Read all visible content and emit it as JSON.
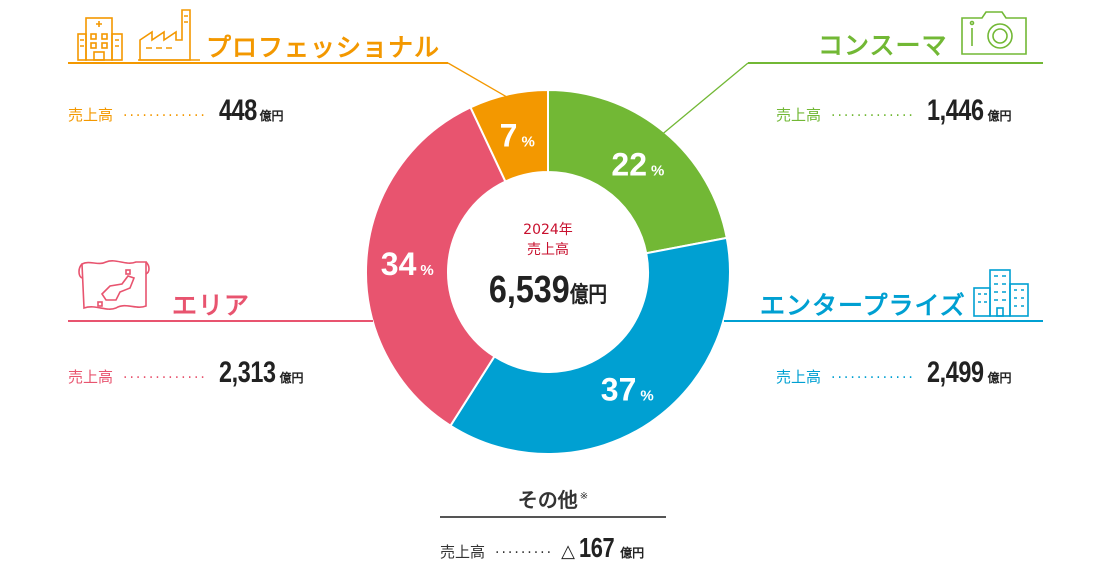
{
  "chart_data": {
    "type": "pie",
    "variant": "donut",
    "center": {
      "year_label": "2024年",
      "sales_label": "売上高",
      "total": "6,539",
      "unit": "億円"
    },
    "slices": [
      {
        "name": "コンスーマ",
        "percent": 22,
        "sales": "1,446",
        "color": "#72b835"
      },
      {
        "name": "エンタープライズ",
        "percent": 37,
        "sales": "2,499",
        "color": "#00a0d2"
      },
      {
        "name": "エリア",
        "percent": 34,
        "sales": "2,313",
        "color": "#e8546f"
      },
      {
        "name": "プロフェッショナル",
        "percent": 7,
        "sales": "448",
        "color": "#f39800"
      }
    ],
    "percent_sign": "%"
  },
  "segments": {
    "professional": {
      "title": "プロフェッショナル",
      "sales_label": "売上高",
      "dots": "·············",
      "amount": "448",
      "unit": "億円",
      "color": "#f39800"
    },
    "consumer": {
      "title": "コンスーマ",
      "sales_label": "売上高",
      "dots": "·············",
      "amount": "1,446",
      "unit": "億円",
      "color": "#72b835"
    },
    "area": {
      "title": "エリア",
      "sales_label": "売上高",
      "dots": "·············",
      "amount": "2,313",
      "unit": "億円",
      "color": "#e8546f"
    },
    "enterprise": {
      "title": "エンタープライズ",
      "sales_label": "売上高",
      "dots": "·············",
      "amount": "2,499",
      "unit": "億円",
      "color": "#00a0d2"
    },
    "other": {
      "title": "その他",
      "note_mark": "※",
      "sales_label": "売上高",
      "dots": "·········",
      "prefix": "△",
      "amount": "167",
      "unit": "億円",
      "color": "#555555"
    }
  },
  "icons": {
    "professional": [
      "hospital-icon",
      "factory-icon"
    ],
    "consumer": "camera-icon",
    "area": "map-icon",
    "enterprise": "office-building-icon"
  }
}
